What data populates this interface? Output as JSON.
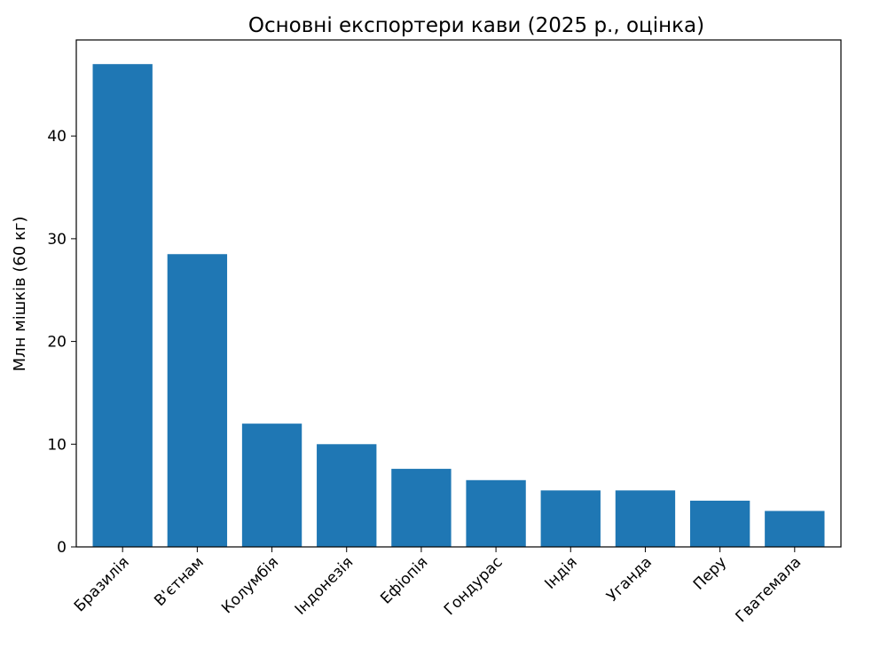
{
  "chart_data": {
    "type": "bar",
    "title": "Основні експортери кави (2025 р., оцінка)",
    "xlabel": "",
    "ylabel": "Млн мішків (60 кг)",
    "categories": [
      "Бразилія",
      "В'єтнам",
      "Колумбія",
      "Індонезія",
      "Ефіопія",
      "Гондурас",
      "Індія",
      "Уганда",
      "Перу",
      "Гватемала"
    ],
    "values": [
      47.0,
      28.5,
      12.0,
      10.0,
      7.6,
      6.5,
      5.5,
      5.5,
      4.5,
      3.5
    ],
    "ylim": [
      0,
      49.35
    ],
    "yticks": [
      0,
      10,
      20,
      30,
      40
    ],
    "grid": false,
    "bar_color": "#1f77b4"
  }
}
